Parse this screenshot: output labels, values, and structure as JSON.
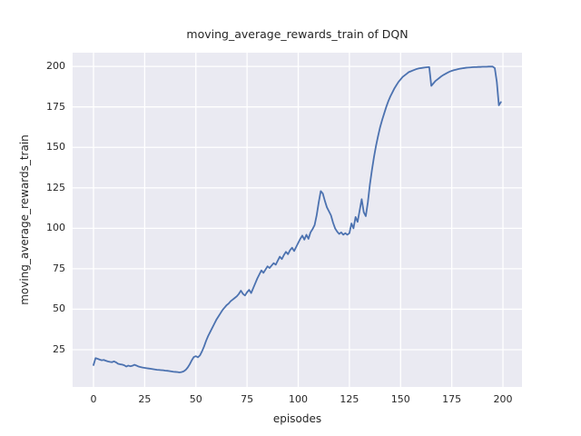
{
  "chart_data": {
    "type": "line",
    "title": "moving_average_rewards_train of DQN",
    "xlabel": "episodes",
    "ylabel": "moving_average_rewards_train",
    "legend": "none",
    "grid": true,
    "style": "seaborn-darkgrid",
    "x_start": 0,
    "x_step": 1,
    "xlim": [
      -10.2,
      209.3
    ],
    "ylim": [
      2,
      208.5
    ],
    "xticks": [
      0,
      25,
      50,
      75,
      100,
      125,
      150,
      175,
      200
    ],
    "yticks": [
      25,
      50,
      75,
      100,
      125,
      150,
      175,
      200
    ],
    "colors": {
      "line": "#4c72b0",
      "axes_bg": "#eaeaf2",
      "grid": "#ffffff",
      "text": "#262626",
      "fig_bg": "#ffffff"
    },
    "series": [
      {
        "name": "moving_average_rewards_train",
        "y": [
          15.5,
          19.8,
          19.4,
          18.9,
          18.5,
          18.7,
          18.2,
          17.8,
          17.5,
          17.3,
          17.8,
          17.2,
          16.3,
          16.0,
          15.8,
          15.4,
          14.6,
          15.2,
          14.8,
          15.1,
          15.7,
          15.2,
          14.6,
          14.3,
          14.0,
          13.8,
          13.6,
          13.4,
          13.2,
          13.0,
          12.8,
          12.6,
          12.5,
          12.4,
          12.3,
          12.1,
          12.0,
          11.8,
          11.6,
          11.4,
          11.3,
          11.2,
          11.0,
          11.2,
          11.6,
          12.5,
          14.0,
          16.0,
          18.5,
          20.5,
          21.0,
          20.3,
          21.5,
          24.0,
          27.0,
          30.5,
          33.5,
          36.0,
          38.5,
          41.0,
          43.5,
          45.5,
          47.5,
          49.5,
          51.0,
          52.5,
          53.5,
          55.0,
          56.0,
          57.0,
          58.0,
          59.5,
          61.5,
          59.5,
          58.5,
          60.5,
          62.0,
          60.0,
          63.0,
          66.0,
          69.0,
          71.5,
          74.0,
          72.5,
          74.5,
          76.5,
          75.5,
          77.0,
          78.5,
          77.5,
          80.0,
          82.5,
          81.0,
          83.5,
          85.5,
          84.0,
          86.5,
          88.0,
          86.0,
          88.5,
          91.0,
          93.5,
          95.5,
          93.0,
          96.0,
          93.5,
          97.5,
          99.5,
          102.0,
          108.0,
          116.0,
          123.0,
          121.5,
          117.0,
          113.0,
          110.5,
          108.0,
          103.5,
          100.0,
          98.0,
          96.5,
          97.5,
          96.0,
          97.0,
          96.0,
          97.0,
          103.0,
          100.0,
          107.0,
          104.0,
          111.0,
          118.0,
          110.0,
          107.5,
          116.0,
          127.0,
          136.0,
          144.0,
          151.0,
          157.0,
          162.5,
          167.0,
          171.0,
          175.0,
          178.5,
          181.5,
          184.0,
          186.5,
          188.5,
          190.5,
          192.0,
          193.5,
          194.5,
          195.5,
          196.5,
          197.0,
          197.5,
          198.0,
          198.5,
          198.8,
          199.0,
          199.2,
          199.4,
          199.5,
          199.6,
          188.0,
          189.5,
          191.0,
          192.0,
          193.0,
          194.0,
          194.8,
          195.5,
          196.2,
          196.8,
          197.3,
          197.7,
          198.0,
          198.3,
          198.6,
          198.8,
          199.0,
          199.2,
          199.3,
          199.4,
          199.5,
          199.6,
          199.6,
          199.7,
          199.7,
          199.8,
          199.8,
          199.8,
          199.9,
          199.9,
          199.9,
          199.0,
          190.5,
          176.0,
          178.0
        ]
      }
    ]
  }
}
